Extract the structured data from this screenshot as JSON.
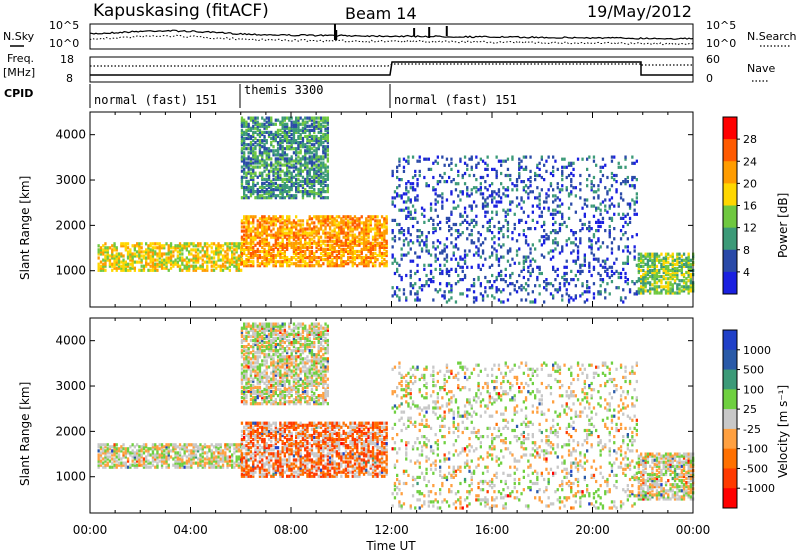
{
  "header": {
    "station": "Kapuskasing (fitACF)",
    "beam": "Beam 14",
    "date": "19/May/2012"
  },
  "left_labels": {
    "nsky": "N.Sky",
    "freq": "Freq.",
    "freq_unit": "[MHz]",
    "cpid": "CPID"
  },
  "right_labels": {
    "nsearch": "N.Search",
    "nave": "Nave"
  },
  "noise_axis": {
    "left_ticks": [
      "10^5",
      "10^0"
    ],
    "right_ticks": [
      "10^5",
      "10^0"
    ]
  },
  "freq_axis": {
    "left_ticks": [
      "18",
      "8"
    ],
    "right_ticks": [
      "60",
      "0"
    ]
  },
  "cpid_segments": [
    {
      "label": "normal (fast) 151",
      "start": "00:00",
      "end": "06:00"
    },
    {
      "label": "themis 3300",
      "start": "06:00",
      "end": "12:00"
    },
    {
      "label": "normal (fast) 151",
      "start": "12:00",
      "end": "24:00"
    }
  ],
  "panels": {
    "ylabel": "Slant Range [km]",
    "yticks": [
      "4000",
      "3000",
      "2000",
      "1000"
    ],
    "xticks": [
      "00:00",
      "04:00",
      "08:00",
      "12:00",
      "16:00",
      "20:00",
      "00:00"
    ],
    "xlabel": "Time UT"
  },
  "power_bar": {
    "label": "Power [dB]",
    "ticks": [
      "28",
      "24",
      "20",
      "16",
      "12",
      "8",
      "4"
    ],
    "colors": [
      "#ff0000",
      "#ff5a00",
      "#ff9c00",
      "#ffd700",
      "#6fc840",
      "#3c9a78",
      "#2a4aa8",
      "#1a20e0"
    ]
  },
  "velocity_bar": {
    "label": "Velocity [m s⁻¹]",
    "ticks": [
      "1000",
      "500",
      "100",
      "25",
      "-25",
      "-100",
      "-500",
      "-1000"
    ],
    "colors": [
      "#2040c8",
      "#2a5aa8",
      "#3c9a78",
      "#6fd040",
      "#c8c8c8",
      "#ffa040",
      "#ff7000",
      "#ff3a00",
      "#ff0000"
    ]
  },
  "chart_data": {
    "type": "heatmap",
    "title": "Kapuskasing (fitACF)",
    "subtitle": "Beam 14",
    "date": "19/May/2012",
    "xlabel": "Time UT",
    "ylabel": "Slant Range [km]",
    "xlim": [
      "00:00",
      "24:00"
    ],
    "ylim": [
      200,
      4500
    ],
    "panels": [
      {
        "quantity": "Power [dB]",
        "colorbar_ticks": [
          4,
          8,
          12,
          16,
          20,
          24,
          28
        ],
        "scatter_bands": [
          {
            "t_start": 0.3,
            "t_end": 6.0,
            "range_min": 1000,
            "range_max": 1600,
            "value": 16
          },
          {
            "t_start": 6.0,
            "t_end": 11.8,
            "range_min": 1100,
            "range_max": 2200,
            "value": 20
          },
          {
            "t_start": 6.0,
            "t_end": 9.5,
            "range_min": 2600,
            "range_max": 4400,
            "value": 8
          },
          {
            "t_start": 12.0,
            "t_end": 21.8,
            "range_min": 300,
            "range_max": 3500,
            "value": 4
          },
          {
            "t_start": 21.8,
            "t_end": 24.0,
            "range_min": 500,
            "range_max": 1400,
            "value": 12
          }
        ]
      },
      {
        "quantity": "Velocity [m s-1]",
        "colorbar_ticks": [
          -1000,
          -500,
          -100,
          -25,
          25,
          100,
          500,
          1000
        ],
        "scatter_bands": [
          {
            "t_start": 0.3,
            "t_end": 6.0,
            "range_min": 1200,
            "range_max": 1700,
            "value": 0
          },
          {
            "t_start": 6.0,
            "t_end": 11.8,
            "range_min": 1000,
            "range_max": 2200,
            "value": -300
          },
          {
            "t_start": 6.0,
            "t_end": 9.5,
            "range_min": 2600,
            "range_max": 4400,
            "value": 0
          },
          {
            "t_start": 12.0,
            "t_end": 21.8,
            "range_min": 300,
            "range_max": 3500,
            "value": 0
          },
          {
            "t_start": 21.8,
            "t_end": 24.0,
            "range_min": 500,
            "range_max": 1500,
            "value": 0
          }
        ]
      }
    ]
  }
}
